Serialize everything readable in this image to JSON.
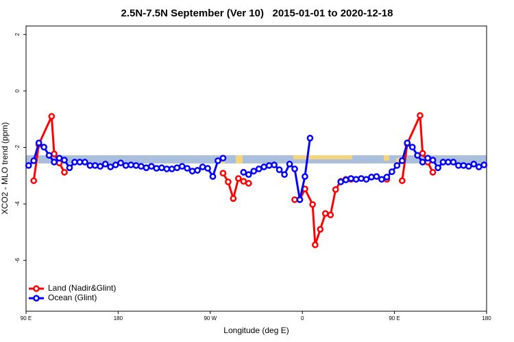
{
  "chart_data": {
    "type": "line",
    "title": "2.5N-7.5N September (Ver 10)   2015-01-01 to 2020-12-18",
    "x_label": "Longitude (deg E)",
    "y_label": "XCO2 - MLO trend (ppm)",
    "xlim": [
      90,
      540
    ],
    "xticks": [
      {
        "value": 90,
        "label": "90 E"
      },
      180,
      {
        "value": 270,
        "label": "90 W"
      },
      {
        "value": 360,
        "label": "0"
      },
      {
        "value": 450,
        "label": "90 E"
      },
      180
    ],
    "ylim": [
      -7.8,
      2.3
    ],
    "yticks": [
      2,
      0,
      -2,
      -4,
      -6
    ],
    "legend": "bottom-left",
    "series": [
      {
        "name": "Land (Nadir&Glint)",
        "color": "#ff0000",
        "x": [
          97.5,
          102.5,
          115,
          117.5,
          122.5,
          127.5,
          null,
          282.5,
          287.5,
          292.5,
          297.5,
          302.5,
          307.5,
          null,
          352.5,
          357.5,
          362.5,
          370,
          372.5,
          377.5,
          382.5,
          387.5,
          392.5,
          397.5,
          402.5,
          407.5,
          null,
          442.5,
          null,
          457.5,
          462.5,
          475,
          477.5,
          482.5,
          487.5
        ],
        "values": [
          -3.18,
          -1.89,
          -0.9,
          -2.23,
          -2.55,
          -2.88,
          null,
          -2.91,
          -3.22,
          -3.81,
          -3.1,
          -3.2,
          -3.27,
          null,
          -3.85,
          -3.85,
          -3.47,
          -4.02,
          -5.45,
          -4.9,
          -4.34,
          -4.39,
          -3.49,
          -3.2,
          -3.13,
          -3.13,
          null,
          -3.13,
          null,
          -3.18,
          -1.87,
          -0.87,
          -2.21,
          -2.52,
          -2.88
        ]
      },
      {
        "name": "Ocean (Glint)",
        "color": "#0000ff",
        "x": [
          92.5,
          97.5,
          102.5,
          107.5,
          112.5,
          117.5,
          122.5,
          127.5,
          132.5,
          137.5,
          142.5,
          147.5,
          152.5,
          157.5,
          162.5,
          167.5,
          172.5,
          177.5,
          182.5,
          187.5,
          192.5,
          197.5,
          202.5,
          207.5,
          212.5,
          217.5,
          222.5,
          227.5,
          232.5,
          237.5,
          242.5,
          247.5,
          252.5,
          257.5,
          262.5,
          267.5,
          272.5,
          277.5,
          282.5,
          null,
          302.5,
          307.5,
          312.5,
          317.5,
          322.5,
          327.5,
          332.5,
          337.5,
          342.5,
          347.5,
          352.5,
          357.5,
          362.5,
          367.5,
          null,
          397.5,
          402.5,
          407.5,
          412.5,
          417.5,
          422.5,
          427.5,
          432.5,
          437.5,
          442.5,
          447.5,
          452.5,
          457.5,
          462.5,
          467.5,
          472.5,
          477.5,
          482.5,
          487.5,
          492.5,
          497.5,
          502.5,
          507.5,
          512.5,
          517.5,
          522.5,
          527.5,
          532.5,
          537.5
        ],
        "values": [
          -2.64,
          -2.47,
          -1.84,
          -1.99,
          -2.28,
          -2.52,
          -2.38,
          -2.45,
          -2.72,
          -2.52,
          -2.52,
          -2.52,
          -2.64,
          -2.64,
          -2.67,
          -2.59,
          -2.69,
          -2.62,
          -2.55,
          -2.64,
          -2.62,
          -2.64,
          -2.67,
          -2.72,
          -2.67,
          -2.74,
          -2.72,
          -2.76,
          -2.76,
          -2.72,
          -2.67,
          -2.74,
          -2.84,
          -2.81,
          -2.69,
          -2.74,
          -3.03,
          -2.47,
          -2.38,
          null,
          -2.88,
          -2.96,
          -2.84,
          -2.76,
          -2.69,
          -2.64,
          -2.62,
          -2.79,
          -2.96,
          -2.59,
          -2.76,
          -3.85,
          -3.03,
          -1.67,
          null,
          -3.22,
          -3.15,
          -3.1,
          -3.13,
          -3.1,
          -3.13,
          -3.05,
          -3.03,
          -3.13,
          -3.05,
          -2.86,
          -2.64,
          -2.47,
          -1.84,
          -1.99,
          -2.28,
          -2.52,
          -2.38,
          -2.45,
          -2.72,
          -2.52,
          -2.52,
          -2.52,
          -2.64,
          -2.64,
          -2.67,
          -2.59,
          -2.69,
          -2.62
        ]
      }
    ]
  }
}
